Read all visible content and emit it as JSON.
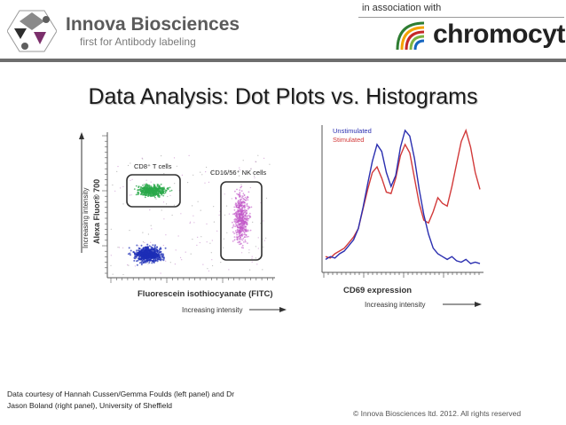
{
  "header": {
    "brand_name": "Innova Biosciences",
    "brand_tagline": "first for Antibody labeling",
    "association": "in association with",
    "partner_name": "chromocyte",
    "logo_icon": "innova-hexagon-logo-icon",
    "partner_icon": "chromocyte-logo-icon"
  },
  "title": "Data Analysis: Dot Plots vs. Histograms",
  "dot_plot": {
    "y_label_top": "Increasing intensity",
    "y_label_main": "Alexa Fluor® 700",
    "x_label_main": "Fluorescein isothiocyanate (FITC)",
    "x_label_sub": "Increasing intensity",
    "gate_cd8": "CD8⁺ T cells",
    "gate_nk": "CD16/56⁺ NK cells",
    "colors": {
      "cd8": "#2aa84a",
      "nk": "#c257c8",
      "neg": "#1c2db6"
    }
  },
  "chart_data": {
    "type": "line",
    "xlabel": "CD69 expression",
    "xlabel_sub": "Increasing intensity",
    "series": [
      {
        "name": "Unstimulated",
        "color": "#2b2fb0",
        "values": [
          0.08,
          0.1,
          0.09,
          0.12,
          0.14,
          0.18,
          0.22,
          0.3,
          0.45,
          0.62,
          0.78,
          0.9,
          0.85,
          0.7,
          0.6,
          0.68,
          0.88,
          1.0,
          0.96,
          0.8,
          0.58,
          0.4,
          0.26,
          0.16,
          0.12,
          0.1,
          0.08,
          0.1,
          0.07,
          0.06,
          0.08,
          0.05,
          0.06,
          0.05
        ]
      },
      {
        "name": "Stimulated",
        "color": "#d23a3a",
        "values": [
          0.1,
          0.09,
          0.12,
          0.14,
          0.16,
          0.2,
          0.24,
          0.3,
          0.44,
          0.58,
          0.7,
          0.74,
          0.66,
          0.56,
          0.55,
          0.66,
          0.82,
          0.9,
          0.84,
          0.66,
          0.48,
          0.36,
          0.34,
          0.42,
          0.52,
          0.48,
          0.46,
          0.6,
          0.76,
          0.92,
          1.0,
          0.88,
          0.7,
          0.58
        ]
      }
    ]
  },
  "credit_line1": "Data courtesy of Hannah Cussen/Gemma Foulds (left panel) and Dr",
  "credit_line2": "Jason Boland (right panel), University of Sheffield",
  "copyright": "© Innova Biosciences ltd. 2012. All rights reserved"
}
